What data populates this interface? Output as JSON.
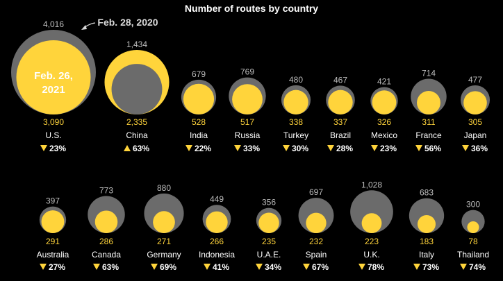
{
  "chart_data": {
    "type": "bubble",
    "title": "Number of routes by country",
    "annotations": {
      "before_label": "Feb. 28, 2020",
      "after_label_line1": "Feb. 26,",
      "after_label_line2": "2021"
    },
    "series": [
      {
        "name": "Feb. 28, 2020",
        "color": "#6b6b6b"
      },
      {
        "name": "Feb. 26, 2021",
        "color": "#ffd43b"
      }
    ],
    "rows": [
      [
        {
          "country": "U.S.",
          "before": "4,016",
          "after": "3,090",
          "change": "23%",
          "direction": "down"
        },
        {
          "country": "China",
          "before": "1,434",
          "after": "2,335",
          "change": "63%",
          "direction": "up"
        },
        {
          "country": "India",
          "before": "679",
          "after": "528",
          "change": "22%",
          "direction": "down"
        },
        {
          "country": "Russia",
          "before": "769",
          "after": "517",
          "change": "33%",
          "direction": "down"
        },
        {
          "country": "Turkey",
          "before": "480",
          "after": "338",
          "change": "30%",
          "direction": "down"
        },
        {
          "country": "Brazil",
          "before": "467",
          "after": "337",
          "change": "28%",
          "direction": "down"
        },
        {
          "country": "Mexico",
          "before": "421",
          "after": "326",
          "change": "23%",
          "direction": "down"
        },
        {
          "country": "France",
          "before": "714",
          "after": "311",
          "change": "56%",
          "direction": "down"
        },
        {
          "country": "Japan",
          "before": "477",
          "after": "305",
          "change": "36%",
          "direction": "down"
        }
      ],
      [
        {
          "country": "Australia",
          "before": "397",
          "after": "291",
          "change": "27%",
          "direction": "down"
        },
        {
          "country": "Canada",
          "before": "773",
          "after": "286",
          "change": "63%",
          "direction": "down"
        },
        {
          "country": "Germany",
          "before": "880",
          "after": "271",
          "change": "69%",
          "direction": "down"
        },
        {
          "country": "Indonesia",
          "before": "449",
          "after": "266",
          "change": "41%",
          "direction": "down"
        },
        {
          "country": "U.A.E.",
          "before": "356",
          "after": "235",
          "change": "34%",
          "direction": "down"
        },
        {
          "country": "Spain",
          "before": "697",
          "after": "232",
          "change": "67%",
          "direction": "down"
        },
        {
          "country": "U.K.",
          "before": "1,028",
          "after": "223",
          "change": "78%",
          "direction": "down"
        },
        {
          "country": "Italy",
          "before": "683",
          "after": "183",
          "change": "73%",
          "direction": "down"
        },
        {
          "country": "Thailand",
          "before": "300",
          "after": "78",
          "change": "74%",
          "direction": "down"
        }
      ]
    ]
  }
}
